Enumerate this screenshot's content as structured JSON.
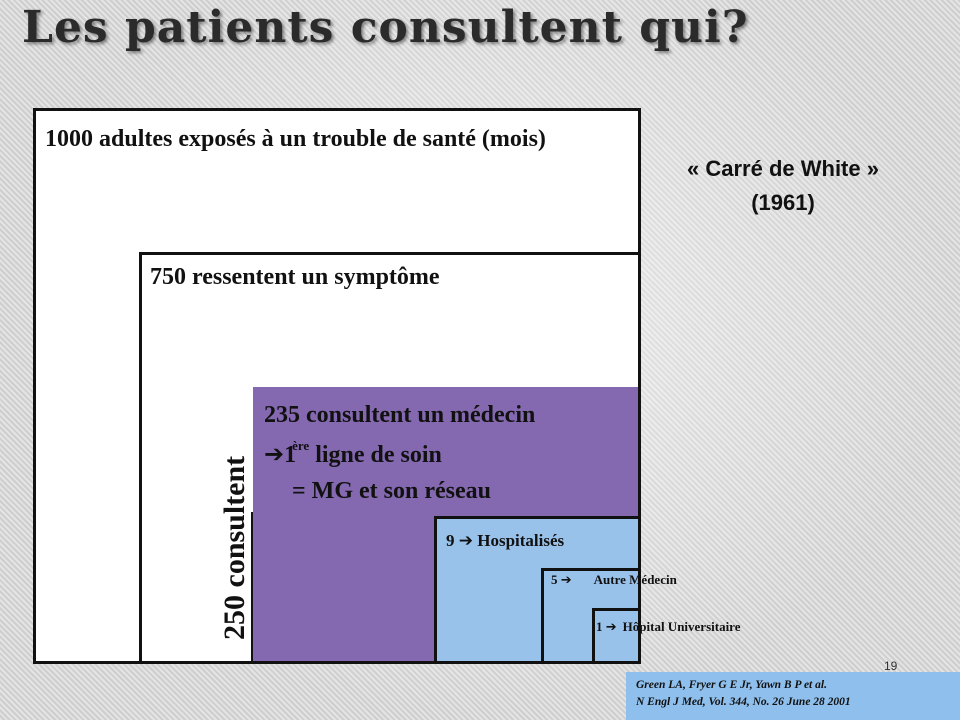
{
  "title": "Les patients consultent qui?",
  "caption": {
    "line1": "« Carré de White »",
    "line2": "(1961)"
  },
  "boxes": {
    "outer": "1000 adultes exposés à un trouble de santé (mois)",
    "symptom": "750 ressentent un symptôme",
    "consult_line1": "235 consultent un médecin",
    "consult_line2_number": "1",
    "consult_line2_sup": "ère",
    "consult_line2_rest": " ligne de soin",
    "consult_line3": "= MG et son réseau",
    "vertical": "250 consultent",
    "hosp_number": "9",
    "hosp_label": "Hospitalisés",
    "other_number": "5",
    "other_label": "Autre Médecin",
    "univ_number": "1",
    "univ_label": "Hôpital Universitaire"
  },
  "arrow_glyph": "➔",
  "page_number": "19",
  "reference": {
    "line1": "Green LA, Fryer G E Jr, Yawn B P et al.",
    "line2": "N Engl J Med, Vol. 344, No. 26 June 28 2001"
  },
  "colors": {
    "consult_fill": "#8469b0",
    "referral_fill": "#99c2eb",
    "reference_fill": "#8fbfec"
  }
}
